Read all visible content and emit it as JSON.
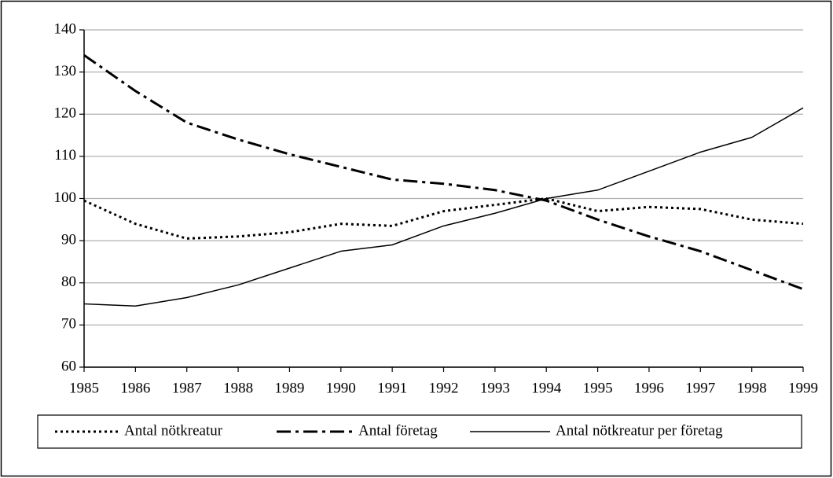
{
  "chart_data": {
    "type": "line",
    "x": [
      1985,
      1986,
      1987,
      1988,
      1989,
      1990,
      1991,
      1992,
      1993,
      1994,
      1995,
      1996,
      1997,
      1998,
      1999
    ],
    "xlim": [
      1985,
      1999
    ],
    "xticks": [
      1985,
      1986,
      1987,
      1988,
      1989,
      1990,
      1991,
      1992,
      1993,
      1994,
      1995,
      1996,
      1997,
      1998,
      1999
    ],
    "ylim": [
      60,
      140
    ],
    "yticks": [
      60,
      70,
      80,
      90,
      100,
      110,
      120,
      130,
      140
    ],
    "grid": true,
    "legend": "bottom",
    "series": [
      {
        "name": "Antal nötkreatur",
        "color": "#000000",
        "style": "dotted",
        "values": [
          99.5,
          94,
          90.5,
          91,
          92,
          94,
          93.5,
          97,
          98.5,
          100,
          97,
          98,
          97.5,
          95,
          94
        ]
      },
      {
        "name": "Antal företag",
        "color": "#000000",
        "style": "dashdot",
        "values": [
          134,
          125.5,
          118,
          114,
          110.5,
          107.5,
          104.5,
          103.5,
          102,
          99.5,
          95,
          91,
          87.5,
          83,
          78.5
        ]
      },
      {
        "name": "Antal nötkreatur per företag",
        "color": "#000000",
        "style": "solid",
        "values": [
          75,
          74.5,
          76.5,
          79.5,
          83.5,
          87.5,
          89,
          93.5,
          96.5,
          100,
          102,
          106.5,
          111,
          114.5,
          121.5
        ]
      }
    ]
  }
}
